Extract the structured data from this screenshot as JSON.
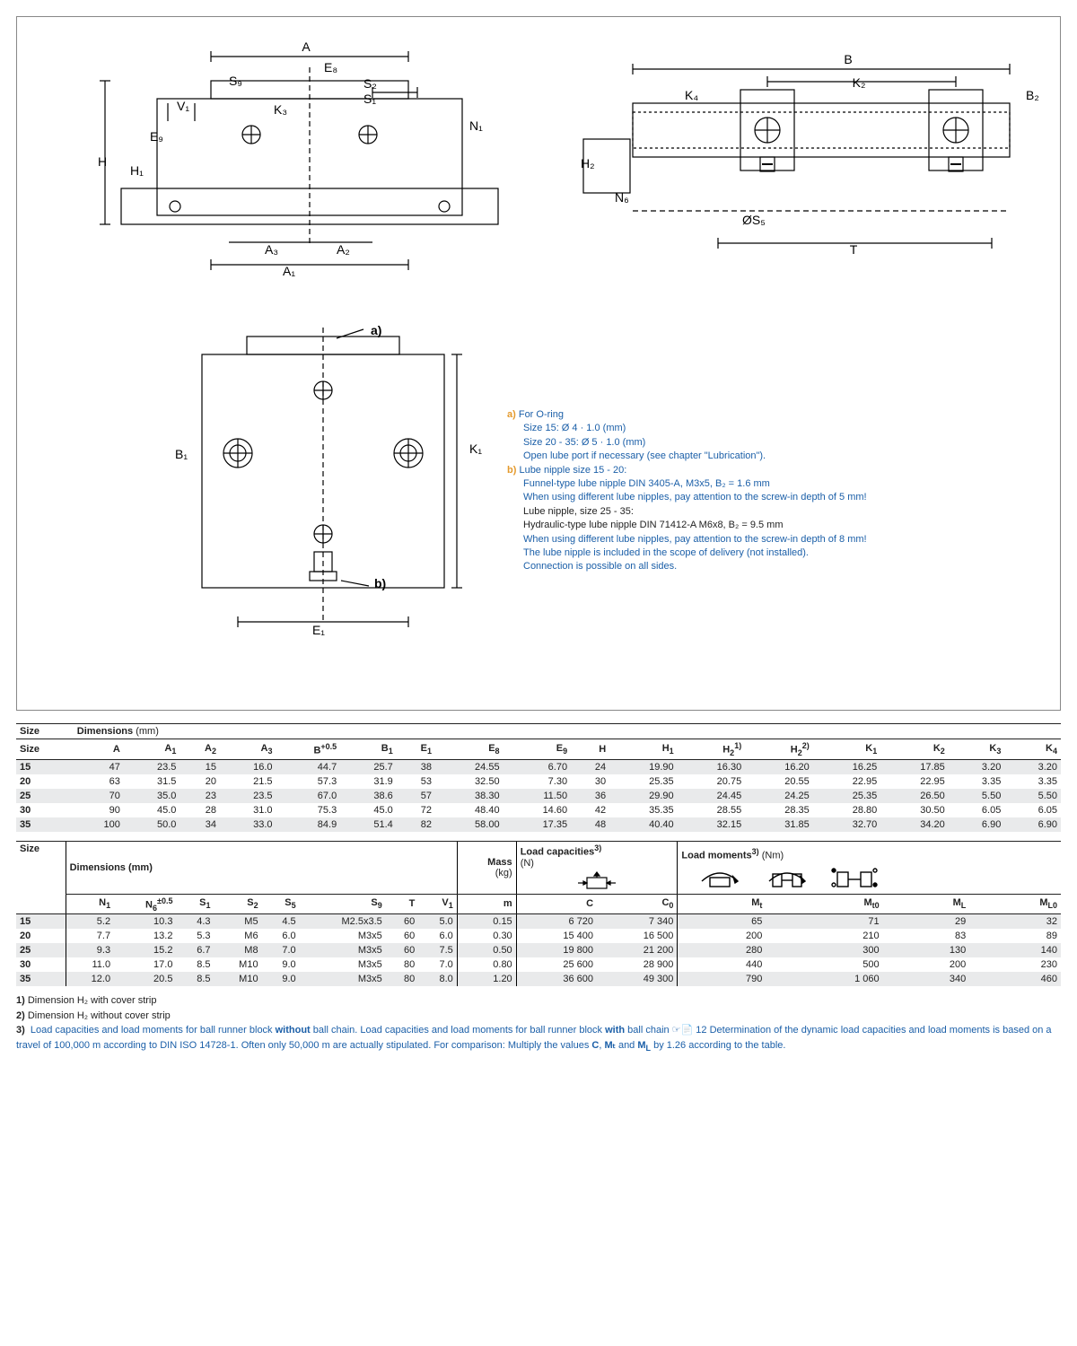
{
  "diagrams": {
    "labels_top_left": [
      "A",
      "E₈",
      "S₂",
      "S₁",
      "S₉",
      "V₁",
      "K₃",
      "E₉",
      "H₁",
      "H",
      "N₁",
      "A₃",
      "A₂",
      "A₁"
    ],
    "labels_top_right": [
      "B",
      "K₂",
      "B₂",
      "K₄",
      "H₂",
      "N₆",
      "ØS₅",
      "T"
    ],
    "labels_bottom_left": [
      "a)",
      "K₁",
      "B₁",
      "b)",
      "E₁"
    ]
  },
  "notes": {
    "a_title": "For O-ring",
    "a_lines": [
      "Size 15: Ø 4 · 1.0 (mm)",
      "Size 20 - 35: Ø 5 · 1.0 (mm)",
      "Open lube port if necessary (see chapter \"Lubrication\")."
    ],
    "b_title": "Lube nipple size 15 - 20:",
    "b_lines": [
      "Funnel-type lube nipple DIN 3405-A, M3x5, B₂ = 1.6 mm",
      "When using different lube nipples, pay attention to the screw-in depth of 5 mm!",
      "Lube nipple, size 25 - 35:",
      "Hydraulic-type lube nipple DIN 71412-A M6x8, B₂ = 9.5 mm",
      "When using different lube nipples, pay attention to the screw-in depth of 8 mm!",
      "The lube nipple is included in the scope of delivery (not installed).",
      "Connection is possible on all sides."
    ]
  },
  "table1": {
    "title": "Dimensions",
    "unit": "(mm)",
    "headers": [
      "Size",
      "A",
      "A₁",
      "A₂",
      "A₃",
      "B⁺⁰·⁵",
      "B₁",
      "E₁",
      "E₈",
      "E₉",
      "H",
      "H₁",
      "H₂¹⁾",
      "H₂²⁾",
      "K₁",
      "K₂",
      "K₃",
      "K₄"
    ],
    "rows": [
      [
        "15",
        "47",
        "23.5",
        "15",
        "16.0",
        "44.7",
        "25.7",
        "38",
        "24.55",
        "6.70",
        "24",
        "19.90",
        "16.30",
        "16.20",
        "16.25",
        "17.85",
        "3.20",
        "3.20"
      ],
      [
        "20",
        "63",
        "31.5",
        "20",
        "21.5",
        "57.3",
        "31.9",
        "53",
        "32.50",
        "7.30",
        "30",
        "25.35",
        "20.75",
        "20.55",
        "22.95",
        "22.95",
        "3.35",
        "3.35"
      ],
      [
        "25",
        "70",
        "35.0",
        "23",
        "23.5",
        "67.0",
        "38.6",
        "57",
        "38.30",
        "11.50",
        "36",
        "29.90",
        "24.45",
        "24.25",
        "25.35",
        "26.50",
        "5.50",
        "5.50"
      ],
      [
        "30",
        "90",
        "45.0",
        "28",
        "31.0",
        "75.3",
        "45.0",
        "72",
        "48.40",
        "14.60",
        "42",
        "35.35",
        "28.55",
        "28.35",
        "28.80",
        "30.50",
        "6.05",
        "6.05"
      ],
      [
        "35",
        "100",
        "50.0",
        "34",
        "33.0",
        "84.9",
        "51.4",
        "82",
        "58.00",
        "17.35",
        "48",
        "40.40",
        "32.15",
        "31.85",
        "32.70",
        "34.20",
        "6.90",
        "6.90"
      ]
    ]
  },
  "table2": {
    "group_headers": [
      "Size",
      "Dimensions (mm)",
      "Mass (kg)",
      "Load capacities³⁾ (N)",
      "Load moments³⁾ (Nm)"
    ],
    "headers": [
      "Size",
      "N₁",
      "N₆±0.5",
      "S₁",
      "S₂",
      "S₅",
      "S₉",
      "T",
      "V₁",
      "m",
      "C",
      "C₀",
      "Mₜ",
      "Mₜ₀",
      "M_L",
      "M_L0"
    ],
    "rows": [
      [
        "15",
        "5.2",
        "10.3",
        "4.3",
        "M5",
        "4.5",
        "M2.5x3.5",
        "60",
        "5.0",
        "0.15",
        "6 720",
        "7 340",
        "65",
        "71",
        "29",
        "32"
      ],
      [
        "20",
        "7.7",
        "13.2",
        "5.3",
        "M6",
        "6.0",
        "M3x5",
        "60",
        "6.0",
        "0.30",
        "15 400",
        "16 500",
        "200",
        "210",
        "83",
        "89"
      ],
      [
        "25",
        "9.3",
        "15.2",
        "6.7",
        "M8",
        "7.0",
        "M3x5",
        "60",
        "7.5",
        "0.50",
        "19 800",
        "21 200",
        "280",
        "300",
        "130",
        "140"
      ],
      [
        "30",
        "11.0",
        "17.0",
        "8.5",
        "M10",
        "9.0",
        "M3x5",
        "80",
        "7.0",
        "0.80",
        "25 600",
        "28 900",
        "440",
        "500",
        "200",
        "230"
      ],
      [
        "35",
        "12.0",
        "20.5",
        "8.5",
        "M10",
        "9.0",
        "M3x5",
        "80",
        "8.0",
        "1.20",
        "36 600",
        "49 300",
        "790",
        "1 060",
        "340",
        "460"
      ]
    ]
  },
  "footnotes": {
    "n1_label": "1)",
    "n1": "Dimension H₂ with cover strip",
    "n2_label": "2)",
    "n2": "Dimension H₂ without cover strip",
    "n3_label": "3)",
    "n3a": "Load capacities and load moments for ball runner block ",
    "n3a_bold1": "without",
    "n3b": " ball chain. Load capacities and load moments for ball runner block ",
    "n3b_bold2": "with",
    "n3c": " ball chain ☞📄 12 Determination of the dynamic load capacities and load moments is based on a travel of 100,000 m according to DIN ISO 14728-1. Often only 50,000 m are actually stipulated. For comparison: Multiply the values ",
    "n3c_boldC": "C",
    "n3d": ", ",
    "n3d_boldMt": "Mₜ",
    "n3e": " and ",
    "n3e_boldML": "M",
    "n3e_boldML_sub": "L",
    "n3f": " by 1.26 according to the table."
  }
}
